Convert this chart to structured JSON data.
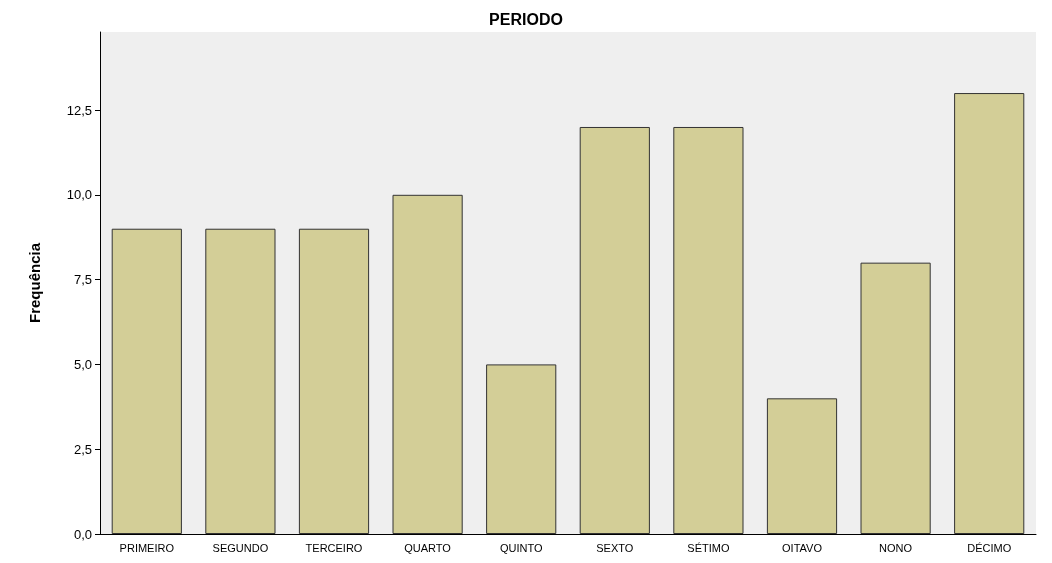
{
  "chart_data": {
    "type": "bar",
    "title": "PERIODO",
    "ylabel": "Frequência",
    "categories": [
      "PRIMEIRO",
      "SEGUNDO",
      "TERCEIRO",
      "QUARTO",
      "QUINTO",
      "SEXTO",
      "SÉTIMO",
      "OITAVO",
      "NONO",
      "DÉCIMO"
    ],
    "values": [
      9,
      9,
      9,
      10,
      5,
      12,
      12,
      4,
      8,
      13
    ],
    "color": "#d3ce97",
    "ylim": [
      0,
      14.8
    ],
    "yticks": [
      {
        "value": 0,
        "label": "0,0"
      },
      {
        "value": 2.5,
        "label": "2,5"
      },
      {
        "value": 5,
        "label": "5,0"
      },
      {
        "value": 7.5,
        "label": "7,5"
      },
      {
        "value": 10,
        "label": "10,0"
      },
      {
        "value": 12.5,
        "label": "12,5"
      }
    ],
    "grid": false
  }
}
